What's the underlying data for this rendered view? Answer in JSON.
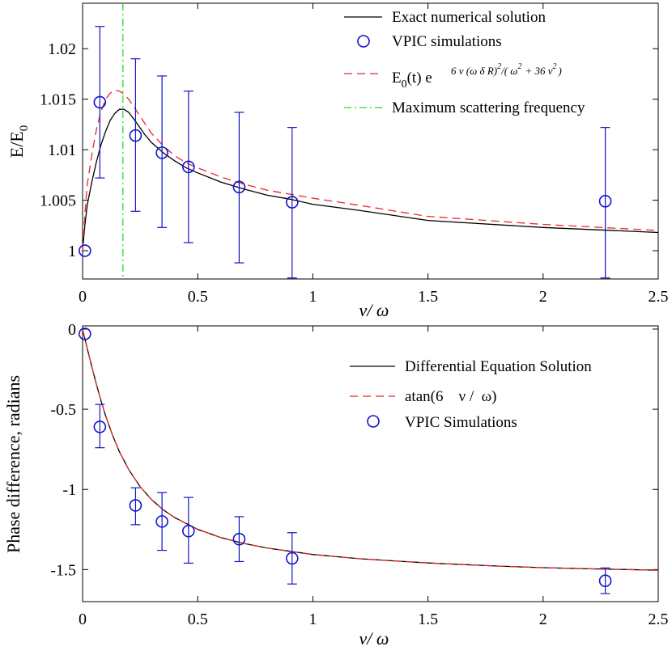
{
  "chart_data": [
    {
      "type": "line",
      "xlabel": "ν/ ω",
      "ylabel": "E/E0",
      "ylabel_main": "E/E",
      "ylabel_sub": "0",
      "xlim": [
        0,
        2.5
      ],
      "ylim": [
        0.9972,
        1.0245
      ],
      "xticks": [
        0,
        0.5,
        1,
        1.5,
        2,
        2.5
      ],
      "xtick_labels": [
        "0",
        "0.5",
        "1",
        "1.5",
        "2",
        "2.5"
      ],
      "yticks": [
        1,
        1.005,
        1.01,
        1.015,
        1.02
      ],
      "ytick_labels": [
        "1",
        "1.005",
        "1.01",
        "1.015",
        "1.02"
      ],
      "legend_placement": "top-right",
      "legend": {
        "exact": "Exact numerical solution",
        "vpic": "VPIC simulations",
        "formula_base": "E",
        "formula_sub0": "0",
        "formula_mid": "(t) e",
        "formula_exp_a": "6  ν (ω  δ R)",
        "formula_exp_sq1": "2",
        "formula_exp_b": "/( ω",
        "formula_exp_sq2": "2",
        "formula_exp_c": "+ 36    ν",
        "formula_exp_sq3": "2",
        "formula_exp_d": ")",
        "maxfreq": "Maximum scattering frequency"
      },
      "series": [
        {
          "name": "Exact numerical solution",
          "style": "solid",
          "color": "#000000",
          "x": [
            0,
            0.01,
            0.02,
            0.04,
            0.06,
            0.08,
            0.1,
            0.12,
            0.14,
            0.16,
            0.18,
            0.2,
            0.23,
            0.27,
            0.3,
            0.35,
            0.4,
            0.45,
            0.5,
            0.6,
            0.7,
            0.8,
            0.9,
            1.0,
            1.2,
            1.5,
            2.0,
            2.5
          ],
          "y": [
            1.0,
            1.0025,
            1.0045,
            1.0068,
            1.0088,
            1.0105,
            1.0118,
            1.0129,
            1.0136,
            1.014,
            1.014,
            1.0137,
            1.0128,
            1.0115,
            1.0107,
            1.0097,
            1.0089,
            1.0082,
            1.0077,
            1.0068,
            1.0061,
            1.0055,
            1.0051,
            1.0046,
            1.004,
            1.003,
            1.0023,
            1.0018
          ]
        },
        {
          "name": "E0(t) formula",
          "style": "dashed",
          "color": "#e8262b",
          "x": [
            0,
            0.01,
            0.02,
            0.04,
            0.06,
            0.08,
            0.1,
            0.12,
            0.14,
            0.16,
            0.18,
            0.2,
            0.23,
            0.27,
            0.3,
            0.35,
            0.4,
            0.45,
            0.5,
            0.6,
            0.7,
            0.8,
            0.9,
            1.0,
            1.2,
            1.5,
            2.0,
            2.5
          ],
          "y": [
            1.0,
            1.0035,
            1.0065,
            1.0095,
            1.012,
            1.0138,
            1.015,
            1.0156,
            1.0159,
            1.0158,
            1.0155,
            1.015,
            1.014,
            1.0126,
            1.0116,
            1.0104,
            1.0094,
            1.0087,
            1.0082,
            1.0073,
            1.0066,
            1.006,
            1.0056,
            1.0052,
            1.0045,
            1.0034,
            1.0026,
            1.002
          ]
        }
      ],
      "vpic": {
        "name": "VPIC simulations",
        "color": "#1414c8",
        "points": [
          {
            "x": 0.01,
            "y": 1.0,
            "err_low": 1.0,
            "err_high": 1.0
          },
          {
            "x": 0.075,
            "y": 1.0147,
            "err_low": 1.0072,
            "err_high": 1.0222
          },
          {
            "x": 0.23,
            "y": 1.0114,
            "err_low": 1.0039,
            "err_high": 1.019
          },
          {
            "x": 0.345,
            "y": 1.0097,
            "err_low": 1.0023,
            "err_high": 1.0173
          },
          {
            "x": 0.46,
            "y": 1.0083,
            "err_low": 1.0008,
            "err_high": 1.0158
          },
          {
            "x": 0.68,
            "y": 1.0063,
            "err_low": 0.9988,
            "err_high": 1.0137
          },
          {
            "x": 0.91,
            "y": 1.0048,
            "err_low": 0.9973,
            "err_high": 1.0122
          },
          {
            "x": 2.27,
            "y": 1.0049,
            "err_low": 0.9973,
            "err_high": 1.0122
          }
        ]
      },
      "vline": {
        "x": 0.175,
        "name": "Maximum scattering frequency",
        "color": "#22dd22",
        "style": "dashdot"
      }
    },
    {
      "type": "line",
      "xlabel": "ν/ ω",
      "ylabel": "Phase difference, radians",
      "xlim": [
        0,
        2.5
      ],
      "ylim": [
        -1.7,
        0.02
      ],
      "xticks": [
        0,
        0.5,
        1,
        1.5,
        2,
        2.5
      ],
      "xtick_labels": [
        "0",
        "0.5",
        "1",
        "1.5",
        "2",
        "2.5"
      ],
      "yticks": [
        0,
        -0.5,
        -1,
        -1.5
      ],
      "ytick_labels": [
        "0",
        "-0.5",
        "-1",
        "-1.5"
      ],
      "legend_placement": "top-right",
      "legend": {
        "diff": "Differential Equation Solution",
        "atan": "atan(6    ν /  ω)",
        "vpic": "VPIC Simulations"
      },
      "series": [
        {
          "name": "Differential Equation Solution",
          "style": "solid",
          "color": "#000000",
          "x": [
            0,
            0.01,
            0.02,
            0.04,
            0.06,
            0.08,
            0.1,
            0.13,
            0.16,
            0.2,
            0.25,
            0.3,
            0.35,
            0.4,
            0.5,
            0.6,
            0.7,
            0.8,
            0.9,
            1.0,
            1.2,
            1.5,
            1.8,
            2.0,
            2.2,
            2.5
          ],
          "y": [
            0,
            -0.06,
            -0.119,
            -0.235,
            -0.345,
            -0.448,
            -0.54,
            -0.662,
            -0.765,
            -0.876,
            -0.983,
            -1.064,
            -1.127,
            -1.176,
            -1.249,
            -1.3,
            -1.337,
            -1.365,
            -1.386,
            -1.406,
            -1.432,
            -1.459,
            -1.478,
            -1.488,
            -1.495,
            -1.504
          ]
        },
        {
          "name": "atan(6 ν/ω)",
          "style": "dashed",
          "color": "#e8262b",
          "x": [
            0,
            0.01,
            0.02,
            0.04,
            0.06,
            0.08,
            0.1,
            0.13,
            0.16,
            0.2,
            0.25,
            0.3,
            0.35,
            0.4,
            0.5,
            0.6,
            0.7,
            0.8,
            0.9,
            1.0,
            1.2,
            1.5,
            1.8,
            2.0,
            2.2,
            2.5
          ],
          "y": [
            0,
            -0.06,
            -0.119,
            -0.235,
            -0.345,
            -0.448,
            -0.54,
            -0.662,
            -0.765,
            -0.876,
            -0.983,
            -1.064,
            -1.127,
            -1.176,
            -1.249,
            -1.3,
            -1.337,
            -1.365,
            -1.386,
            -1.406,
            -1.432,
            -1.459,
            -1.478,
            -1.488,
            -1.495,
            -1.504
          ]
        }
      ],
      "vpic": {
        "name": "VPIC Simulations",
        "color": "#1414c8",
        "points": [
          {
            "x": 0.01,
            "y": -0.03,
            "err_low": -0.03,
            "err_high": -0.03
          },
          {
            "x": 0.075,
            "y": -0.61,
            "err_low": -0.74,
            "err_high": -0.47
          },
          {
            "x": 0.23,
            "y": -1.1,
            "err_low": -1.22,
            "err_high": -0.99
          },
          {
            "x": 0.345,
            "y": -1.2,
            "err_low": -1.38,
            "err_high": -1.02
          },
          {
            "x": 0.46,
            "y": -1.26,
            "err_low": -1.46,
            "err_high": -1.05
          },
          {
            "x": 0.68,
            "y": -1.31,
            "err_low": -1.45,
            "err_high": -1.17
          },
          {
            "x": 0.91,
            "y": -1.43,
            "err_low": -1.59,
            "err_high": -1.27
          },
          {
            "x": 2.27,
            "y": -1.57,
            "err_low": -1.65,
            "err_high": -1.49
          }
        ]
      }
    }
  ]
}
